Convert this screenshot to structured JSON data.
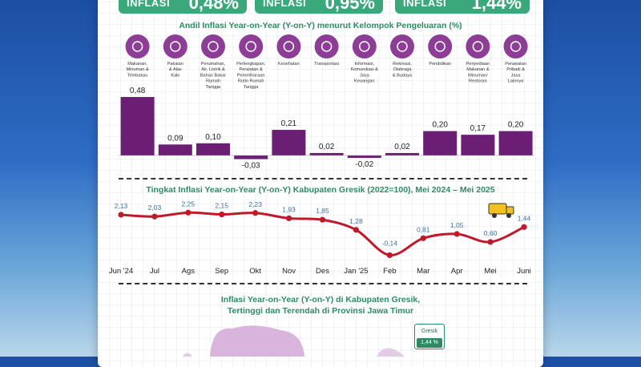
{
  "badges": [
    {
      "label": "INFLASI",
      "value": "0,48%"
    },
    {
      "label": "INFLASI",
      "value": "0,95%"
    },
    {
      "label": "INFLASI",
      "value": "1,44%"
    }
  ],
  "colors": {
    "bar": "#6b1f74",
    "line": "#c01a2a",
    "accent": "#2d8b64",
    "icon_bg": "#8d3d96"
  },
  "map": {
    "title_line1": "Inflasi Year-on-Year (Y-on-Y) di Kabupaten Gresik,",
    "title_line2": "Tertinggi dan Terendah di Provinsi Jawa Timur",
    "tooltip_name": "Gresik",
    "tooltip_value": "1,44 %"
  },
  "chart_data": [
    {
      "type": "bar",
      "title": "Andil Inflasi Year-on-Year (Y-on-Y) menurut Kelompok Pengeluaran (%)",
      "categories": [
        "Makanan, Minuman & Tembakau",
        "Pakaian & Alas Kaki",
        "Perumahan, Air, Listrik & Bahan Bakar Rumah Tangga",
        "Perlengkapan, Peralatan & Pemeliharaan Rutin Rumah Tangga",
        "Kesehatan",
        "Transportasi",
        "Informasi, Komunikasi & Jasa Keuangan",
        "Rekreasi, Olahraga & Budaya",
        "Pendidikan",
        "Penyediaan Makanan & Minuman/ Restoran",
        "Perawatan Pribadi & Jasa Lainnya"
      ],
      "category_lines": [
        [
          "Makanan,",
          "Minuman &",
          "Tembakau"
        ],
        [
          "Pakaian",
          "& Alas",
          "Kaki"
        ],
        [
          "Perumahan,",
          "Air, Listrik &",
          "Bahan Bakar",
          "Rumah",
          "Tangga"
        ],
        [
          "Perlengkapan,",
          "Peralatan &",
          "Pemeliharaan",
          "Rutin Rumah",
          "Tangga"
        ],
        [
          "Kesehatan"
        ],
        [
          "Transportasi"
        ],
        [
          "Informasi,",
          "Komunikasi &",
          "Jasa",
          "Keuangan"
        ],
        [
          "Rekreasi,",
          "Olahraga",
          "& Budaya"
        ],
        [
          "Pendidikan"
        ],
        [
          "Penyediaan",
          "Makanan &",
          "Minuman/",
          "Restoran"
        ],
        [
          "Perawatan",
          "Pribadi &",
          "Jasa",
          "Lainnya"
        ]
      ],
      "icons": [
        "food-icon",
        "shirt-icon",
        "house-icon",
        "tools-icon",
        "health-icon",
        "plane-icon",
        "communication-icon",
        "recreation-icon",
        "education-icon",
        "restaurant-icon",
        "personal-care-icon"
      ],
      "values": [
        0.48,
        0.09,
        0.1,
        -0.03,
        0.21,
        0.02,
        -0.02,
        0.02,
        0.2,
        0.17,
        0.2
      ],
      "value_labels": [
        "0,48",
        "0,09",
        "0,10",
        "-0,03",
        "0,21",
        "0,02",
        "-0,02",
        "0,02",
        "0,20",
        "0,17",
        "0,20"
      ],
      "legend": "none"
    },
    {
      "type": "line",
      "title": "Tingkat Inflasi Year-on-Year (Y-on-Y) Kabupaten Gresik (2022=100), Mei 2024 – Mei 2025",
      "categories": [
        "Jun '24",
        "Jul",
        "Ags",
        "Sep",
        "Okt",
        "Nov",
        "Des",
        "Jan '25",
        "Feb",
        "Mar",
        "Apr",
        "Mei",
        "Juni"
      ],
      "values": [
        2.13,
        2.03,
        2.25,
        2.15,
        2.23,
        1.93,
        1.85,
        1.28,
        -0.14,
        0.81,
        1.05,
        0.6,
        1.44
      ],
      "value_labels": [
        "2,13",
        "2,03",
        "2,25",
        "2,15",
        "2,23",
        "1,93",
        "1,85",
        "1,28",
        "-0,14",
        "0,81",
        "1,05",
        "0,60",
        "1,44"
      ],
      "ylim": [
        -0.3,
        2.4
      ],
      "grid": false,
      "legend": "none"
    }
  ]
}
